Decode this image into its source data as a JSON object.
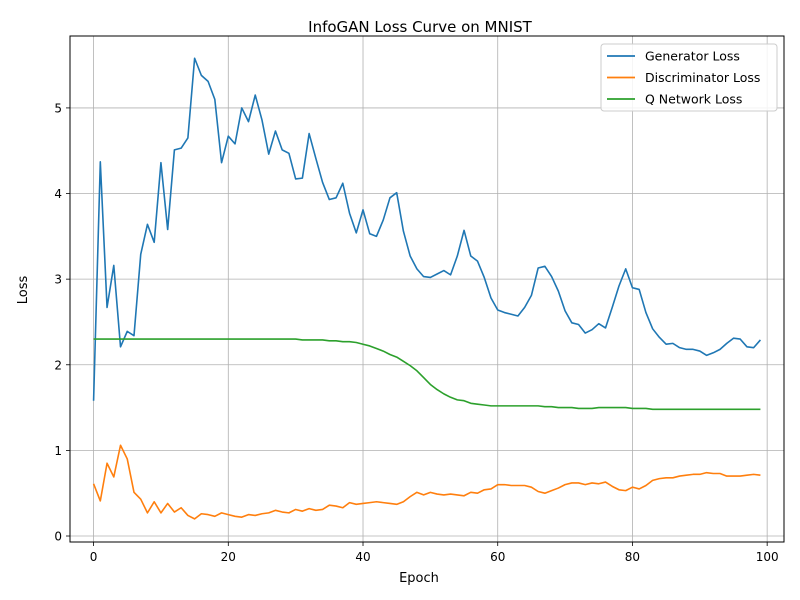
{
  "chart_data": {
    "type": "line",
    "title": "InfoGAN Loss Curve on MNIST",
    "xlabel": "Epoch",
    "ylabel": "Loss",
    "xlim": [
      -3.5,
      102.5
    ],
    "ylim": [
      -0.07,
      5.84
    ],
    "xticks": [
      0,
      20,
      40,
      60,
      80,
      100
    ],
    "yticks": [
      0,
      1,
      2,
      3,
      4,
      5
    ],
    "grid": true,
    "legend_position": "top-right",
    "x": [
      0,
      1,
      2,
      3,
      4,
      5,
      6,
      7,
      8,
      9,
      10,
      11,
      12,
      13,
      14,
      15,
      16,
      17,
      18,
      19,
      20,
      21,
      22,
      23,
      24,
      25,
      26,
      27,
      28,
      29,
      30,
      31,
      32,
      33,
      34,
      35,
      36,
      37,
      38,
      39,
      40,
      41,
      42,
      43,
      44,
      45,
      46,
      47,
      48,
      49,
      50,
      51,
      52,
      53,
      54,
      55,
      56,
      57,
      58,
      59,
      60,
      61,
      62,
      63,
      64,
      65,
      66,
      67,
      68,
      69,
      70,
      71,
      72,
      73,
      74,
      75,
      76,
      77,
      78,
      79,
      80,
      81,
      82,
      83,
      84,
      85,
      86,
      87,
      88,
      89,
      90,
      91,
      92,
      93,
      94,
      95,
      96,
      97,
      98,
      99
    ],
    "series": [
      {
        "name": "Generator Loss",
        "color": "#1f77b4",
        "values": [
          1.58,
          4.37,
          2.67,
          3.16,
          2.21,
          2.39,
          2.34,
          3.29,
          3.64,
          3.43,
          4.36,
          3.58,
          4.51,
          4.53,
          4.65,
          5.58,
          5.38,
          5.31,
          5.1,
          4.36,
          4.67,
          4.58,
          5.0,
          4.84,
          5.15,
          4.86,
          4.46,
          4.73,
          4.51,
          4.47,
          4.17,
          4.18,
          4.7,
          4.41,
          4.13,
          3.93,
          3.95,
          4.12,
          3.77,
          3.54,
          3.81,
          3.53,
          3.5,
          3.69,
          3.95,
          4.01,
          3.56,
          3.27,
          3.12,
          3.03,
          3.02,
          3.06,
          3.1,
          3.05,
          3.27,
          3.57,
          3.27,
          3.21,
          3.02,
          2.78,
          2.64,
          2.61,
          2.59,
          2.57,
          2.67,
          2.81,
          3.13,
          3.15,
          3.03,
          2.86,
          2.63,
          2.49,
          2.47,
          2.37,
          2.41,
          2.48,
          2.43,
          2.67,
          2.92,
          3.12,
          2.9,
          2.88,
          2.61,
          2.42,
          2.32,
          2.24,
          2.25,
          2.2,
          2.18,
          2.18,
          2.16,
          2.11,
          2.14,
          2.18,
          2.25,
          2.31,
          2.3,
          2.21,
          2.2,
          2.29
        ]
      },
      {
        "name": "Discriminator Loss",
        "color": "#ff7f0e",
        "values": [
          0.61,
          0.41,
          0.85,
          0.69,
          1.06,
          0.9,
          0.51,
          0.43,
          0.27,
          0.4,
          0.27,
          0.38,
          0.28,
          0.33,
          0.24,
          0.2,
          0.26,
          0.25,
          0.23,
          0.27,
          0.25,
          0.23,
          0.22,
          0.25,
          0.24,
          0.26,
          0.27,
          0.3,
          0.28,
          0.27,
          0.31,
          0.29,
          0.32,
          0.3,
          0.31,
          0.36,
          0.35,
          0.33,
          0.39,
          0.37,
          0.38,
          0.39,
          0.4,
          0.39,
          0.38,
          0.37,
          0.4,
          0.46,
          0.51,
          0.48,
          0.51,
          0.49,
          0.48,
          0.49,
          0.48,
          0.47,
          0.51,
          0.5,
          0.54,
          0.55,
          0.6,
          0.6,
          0.59,
          0.59,
          0.59,
          0.57,
          0.52,
          0.5,
          0.53,
          0.56,
          0.6,
          0.62,
          0.62,
          0.6,
          0.62,
          0.61,
          0.63,
          0.58,
          0.54,
          0.53,
          0.57,
          0.55,
          0.59,
          0.65,
          0.67,
          0.68,
          0.68,
          0.7,
          0.71,
          0.72,
          0.72,
          0.74,
          0.73,
          0.73,
          0.7,
          0.7,
          0.7,
          0.71,
          0.72,
          0.71
        ]
      },
      {
        "name": "Q Network Loss",
        "color": "#2ca02c",
        "values": [
          2.3,
          2.3,
          2.3,
          2.3,
          2.3,
          2.3,
          2.3,
          2.3,
          2.3,
          2.3,
          2.3,
          2.3,
          2.3,
          2.3,
          2.3,
          2.3,
          2.3,
          2.3,
          2.3,
          2.3,
          2.3,
          2.3,
          2.3,
          2.3,
          2.3,
          2.3,
          2.3,
          2.3,
          2.3,
          2.3,
          2.3,
          2.29,
          2.29,
          2.29,
          2.29,
          2.28,
          2.28,
          2.27,
          2.27,
          2.26,
          2.24,
          2.22,
          2.19,
          2.16,
          2.12,
          2.09,
          2.04,
          1.99,
          1.93,
          1.85,
          1.77,
          1.71,
          1.66,
          1.62,
          1.59,
          1.58,
          1.55,
          1.54,
          1.53,
          1.52,
          1.52,
          1.52,
          1.52,
          1.52,
          1.52,
          1.52,
          1.52,
          1.51,
          1.51,
          1.5,
          1.5,
          1.5,
          1.49,
          1.49,
          1.49,
          1.5,
          1.5,
          1.5,
          1.5,
          1.5,
          1.49,
          1.49,
          1.49,
          1.48,
          1.48,
          1.48,
          1.48,
          1.48,
          1.48,
          1.48,
          1.48,
          1.48,
          1.48,
          1.48,
          1.48,
          1.48,
          1.48,
          1.48,
          1.48,
          1.48
        ]
      }
    ]
  }
}
